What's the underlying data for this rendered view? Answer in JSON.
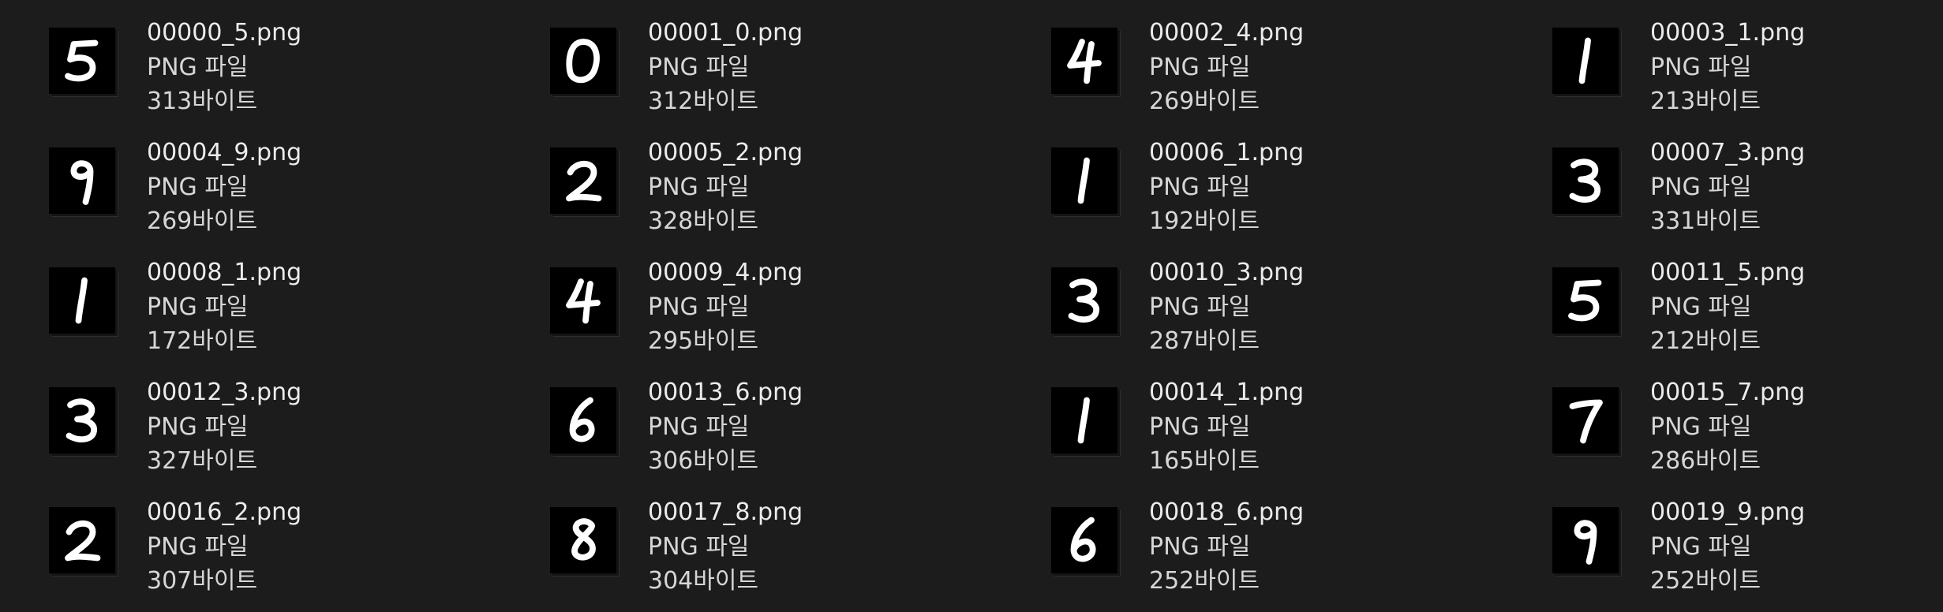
{
  "files": [
    {
      "name": "00000_5.png",
      "type": "PNG 파일",
      "size": "313바이트",
      "icon": "digit-5-thumbnail-icon",
      "digit": "5"
    },
    {
      "name": "00001_0.png",
      "type": "PNG 파일",
      "size": "312바이트",
      "icon": "digit-0-thumbnail-icon",
      "digit": "0"
    },
    {
      "name": "00002_4.png",
      "type": "PNG 파일",
      "size": "269바이트",
      "icon": "digit-4-thumbnail-icon",
      "digit": "4"
    },
    {
      "name": "00003_1.png",
      "type": "PNG 파일",
      "size": "213바이트",
      "icon": "digit-1-thumbnail-icon",
      "digit": "1"
    },
    {
      "name": "00004_9.png",
      "type": "PNG 파일",
      "size": "269바이트",
      "icon": "digit-9-thumbnail-icon",
      "digit": "9"
    },
    {
      "name": "00005_2.png",
      "type": "PNG 파일",
      "size": "328바이트",
      "icon": "digit-2-thumbnail-icon",
      "digit": "2"
    },
    {
      "name": "00006_1.png",
      "type": "PNG 파일",
      "size": "192바이트",
      "icon": "digit-1-thumbnail-icon",
      "digit": "1"
    },
    {
      "name": "00007_3.png",
      "type": "PNG 파일",
      "size": "331바이트",
      "icon": "digit-3-thumbnail-icon",
      "digit": "3"
    },
    {
      "name": "00008_1.png",
      "type": "PNG 파일",
      "size": "172바이트",
      "icon": "digit-1-thumbnail-icon",
      "digit": "1"
    },
    {
      "name": "00009_4.png",
      "type": "PNG 파일",
      "size": "295바이트",
      "icon": "digit-4-thumbnail-icon",
      "digit": "4"
    },
    {
      "name": "00010_3.png",
      "type": "PNG 파일",
      "size": "287바이트",
      "icon": "digit-3-thumbnail-icon",
      "digit": "3"
    },
    {
      "name": "00011_5.png",
      "type": "PNG 파일",
      "size": "212바이트",
      "icon": "digit-5-thumbnail-icon",
      "digit": "5"
    },
    {
      "name": "00012_3.png",
      "type": "PNG 파일",
      "size": "327바이트",
      "icon": "digit-3-thumbnail-icon",
      "digit": "3"
    },
    {
      "name": "00013_6.png",
      "type": "PNG 파일",
      "size": "306바이트",
      "icon": "digit-6-thumbnail-icon",
      "digit": "6"
    },
    {
      "name": "00014_1.png",
      "type": "PNG 파일",
      "size": "165바이트",
      "icon": "digit-1-thumbnail-icon",
      "digit": "1"
    },
    {
      "name": "00015_7.png",
      "type": "PNG 파일",
      "size": "286바이트",
      "icon": "digit-7-thumbnail-icon",
      "digit": "7"
    },
    {
      "name": "00016_2.png",
      "type": "PNG 파일",
      "size": "307바이트",
      "icon": "digit-2-thumbnail-icon",
      "digit": "2"
    },
    {
      "name": "00017_8.png",
      "type": "PNG 파일",
      "size": "304바이트",
      "icon": "digit-8-thumbnail-icon",
      "digit": "8"
    },
    {
      "name": "00018_6.png",
      "type": "PNG 파일",
      "size": "252바이트",
      "icon": "digit-6-thumbnail-icon",
      "digit": "6"
    },
    {
      "name": "00019_9.png",
      "type": "PNG 파일",
      "size": "252바이트",
      "icon": "digit-9-thumbnail-icon",
      "digit": "9"
    }
  ],
  "colors": {
    "background": "#1c1c1c",
    "text": "#ececec",
    "thumbnail_bg": "#000000",
    "digit_stroke": "#ffffff"
  }
}
